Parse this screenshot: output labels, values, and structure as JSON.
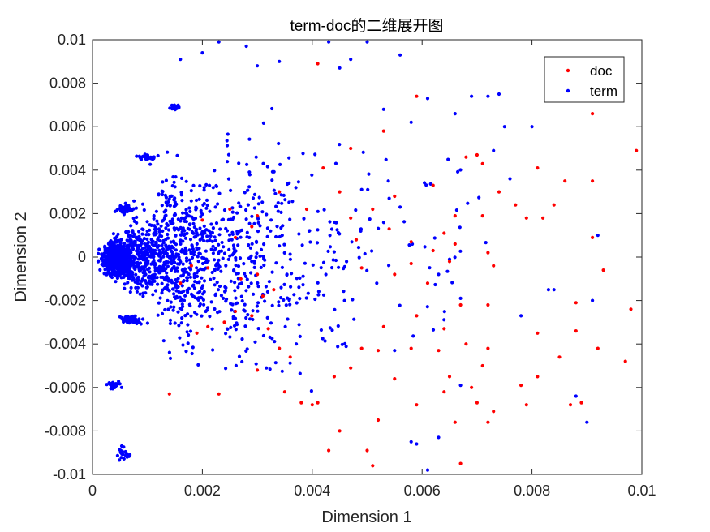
{
  "chart_data": {
    "type": "scatter",
    "title": "term-doc的二维展开图",
    "xlabel": "Dimension 1",
    "ylabel": "Dimension 2",
    "xlim": [
      0,
      0.01
    ],
    "ylim": [
      -0.01,
      0.01
    ],
    "x_ticks": [
      "0",
      "0.002",
      "0.004",
      "0.006",
      "0.008",
      "0.01"
    ],
    "y_ticks": [
      "-0.01",
      "-0.008",
      "-0.006",
      "-0.004",
      "-0.002",
      "0",
      "0.002",
      "0.004",
      "0.006",
      "0.008",
      "0.01"
    ],
    "grid": false,
    "legend_position": "top-right",
    "series": [
      {
        "name": "doc",
        "color": "#ff0000",
        "points": [
          [
            0.0041,
            0.0089
          ],
          [
            0.0059,
            0.0074
          ],
          [
            0.0091,
            0.0066
          ],
          [
            0.0099,
            0.0049
          ],
          [
            0.0053,
            0.0058
          ],
          [
            0.0047,
            0.005
          ],
          [
            0.0042,
            0.0041
          ],
          [
            0.0062,
            0.0033
          ],
          [
            0.0045,
            0.003
          ],
          [
            0.0055,
            0.0028
          ],
          [
            0.007,
            0.0047
          ],
          [
            0.0068,
            0.0046
          ],
          [
            0.0071,
            0.0043
          ],
          [
            0.0081,
            0.0041
          ],
          [
            0.0086,
            0.0035
          ],
          [
            0.0091,
            0.0035
          ],
          [
            0.0074,
            0.003
          ],
          [
            0.0077,
            0.0024
          ],
          [
            0.0084,
            0.0024
          ],
          [
            0.0066,
            0.0019
          ],
          [
            0.0071,
            0.0019
          ],
          [
            0.0079,
            0.0018
          ],
          [
            0.0082,
            0.0018
          ],
          [
            0.0091,
            0.0009
          ],
          [
            0.0093,
            -0.0006
          ],
          [
            0.0051,
            0.0022
          ],
          [
            0.0047,
            0.0018
          ],
          [
            0.0054,
            0.0013
          ],
          [
            0.0048,
            0.0008
          ],
          [
            0.0058,
            0.0007
          ],
          [
            0.0064,
            0.0011
          ],
          [
            0.0066,
            0.0006
          ],
          [
            0.0073,
            -0.0004
          ],
          [
            0.0062,
            0.0003
          ],
          [
            0.0072,
            0.0002
          ],
          [
            0.0058,
            -0.0003
          ],
          [
            0.0065,
            -0.0002
          ],
          [
            0.0049,
            -0.0005
          ],
          [
            0.0055,
            -0.0008
          ],
          [
            0.0061,
            -0.0012
          ],
          [
            0.0067,
            -0.0022
          ],
          [
            0.0072,
            -0.0022
          ],
          [
            0.0088,
            -0.0021
          ],
          [
            0.0098,
            -0.0024
          ],
          [
            0.0059,
            -0.0027
          ],
          [
            0.0053,
            -0.0032
          ],
          [
            0.0064,
            -0.0033
          ],
          [
            0.0068,
            -0.004
          ],
          [
            0.0081,
            -0.0035
          ],
          [
            0.0088,
            -0.0034
          ],
          [
            0.0092,
            -0.0042
          ],
          [
            0.0097,
            -0.0048
          ],
          [
            0.0085,
            -0.0046
          ],
          [
            0.0058,
            -0.0042
          ],
          [
            0.0063,
            -0.0043
          ],
          [
            0.0072,
            -0.0042
          ],
          [
            0.0049,
            -0.0042
          ],
          [
            0.0052,
            -0.0043
          ],
          [
            0.0047,
            -0.0051
          ],
          [
            0.0055,
            -0.0056
          ],
          [
            0.0065,
            -0.0055
          ],
          [
            0.0071,
            -0.005
          ],
          [
            0.0081,
            -0.0055
          ],
          [
            0.0078,
            -0.0059
          ],
          [
            0.0069,
            -0.006
          ],
          [
            0.0064,
            -0.0062
          ],
          [
            0.007,
            -0.0067
          ],
          [
            0.0073,
            -0.0071
          ],
          [
            0.0079,
            -0.0068
          ],
          [
            0.0087,
            -0.0068
          ],
          [
            0.0089,
            -0.0067
          ],
          [
            0.0066,
            -0.0076
          ],
          [
            0.0072,
            -0.0076
          ],
          [
            0.0059,
            -0.0068
          ],
          [
            0.0052,
            -0.0075
          ],
          [
            0.005,
            -0.0089
          ],
          [
            0.0051,
            -0.0096
          ],
          [
            0.0067,
            -0.0095
          ],
          [
            0.0045,
            -0.008
          ],
          [
            0.004,
            -0.0068
          ],
          [
            0.0041,
            -0.0067
          ],
          [
            0.0035,
            -0.0062
          ],
          [
            0.0038,
            -0.0067
          ],
          [
            0.003,
            -0.0052
          ],
          [
            0.0034,
            -0.0042
          ],
          [
            0.0032,
            -0.0033
          ],
          [
            0.0029,
            -0.0027
          ],
          [
            0.0024,
            -0.003
          ],
          [
            0.0026,
            -0.0025
          ],
          [
            0.0031,
            -0.0018
          ],
          [
            0.0027,
            -0.001
          ],
          [
            0.003,
            -0.0008
          ],
          [
            0.0033,
            -0.0015
          ],
          [
            0.0021,
            -0.0005
          ],
          [
            0.0018,
            -0.0004
          ],
          [
            0.0026,
            0.0009
          ],
          [
            0.0029,
            0.0014
          ],
          [
            0.003,
            0.0019
          ],
          [
            0.0025,
            0.0022
          ],
          [
            0.002,
            0.0017
          ],
          [
            0.0034,
            0.003
          ],
          [
            0.0039,
            0.0022
          ],
          [
            0.0023,
            -0.0063
          ],
          [
            0.0014,
            -0.0063
          ],
          [
            0.0019,
            -0.0035
          ],
          [
            0.0021,
            -0.0032
          ],
          [
            0.0016,
            -0.0012
          ],
          [
            0.0036,
            -0.0046
          ],
          [
            0.0044,
            -0.0055
          ],
          [
            0.0043,
            -0.0089
          ]
        ]
      },
      {
        "name": "term",
        "color": "#0000ff",
        "clusters": [
          {
            "cx": 0.00045,
            "cy": -0.0001,
            "rx": 0.00045,
            "ry": 0.0012,
            "n": 700
          },
          {
            "cx": 0.0009,
            "cy": 0.0,
            "rx": 0.0009,
            "ry": 0.003,
            "n": 350
          },
          {
            "cx": 0.0006,
            "cy": 0.0022,
            "rx": 0.00025,
            "ry": 0.0003,
            "n": 60
          },
          {
            "cx": 0.0007,
            "cy": -0.0029,
            "rx": 0.0003,
            "ry": 0.0003,
            "n": 60
          },
          {
            "cx": 0.001,
            "cy": 0.0046,
            "rx": 0.0003,
            "ry": 0.0002,
            "n": 40
          },
          {
            "cx": 0.0004,
            "cy": -0.0059,
            "rx": 0.0002,
            "ry": 0.0003,
            "n": 35
          },
          {
            "cx": 0.0015,
            "cy": 0.0069,
            "rx": 0.0002,
            "ry": 0.0002,
            "n": 25
          },
          {
            "cx": 0.0016,
            "cy": 0.0,
            "rx": 0.001,
            "ry": 0.006,
            "n": 420
          },
          {
            "cx": 0.0025,
            "cy": 0.0,
            "rx": 0.0012,
            "ry": 0.008,
            "n": 260
          },
          {
            "cx": 0.0034,
            "cy": 0.0,
            "rx": 0.0012,
            "ry": 0.009,
            "n": 130
          },
          {
            "cx": 0.0045,
            "cy": 0.0,
            "rx": 0.0012,
            "ry": 0.009,
            "n": 60
          },
          {
            "cx": 0.006,
            "cy": 0.001,
            "rx": 0.002,
            "ry": 0.008,
            "n": 35
          },
          {
            "cx": 0.0006,
            "cy": -0.009,
            "rx": 0.0003,
            "ry": 0.0006,
            "n": 20
          }
        ],
        "points": [
          [
            0.0023,
            0.0099
          ],
          [
            0.0028,
            0.0097
          ],
          [
            0.0043,
            0.0099
          ],
          [
            0.005,
            0.0099
          ],
          [
            0.0056,
            0.0093
          ],
          [
            0.0047,
            0.0091
          ],
          [
            0.0045,
            0.0087
          ],
          [
            0.0034,
            0.009
          ],
          [
            0.003,
            0.0088
          ],
          [
            0.002,
            0.0094
          ],
          [
            0.0016,
            0.0091
          ],
          [
            0.0072,
            0.0074
          ],
          [
            0.0074,
            0.0075
          ],
          [
            0.0069,
            0.0074
          ],
          [
            0.0061,
            0.0073
          ],
          [
            0.0066,
            0.0066
          ],
          [
            0.0075,
            0.006
          ],
          [
            0.008,
            0.006
          ],
          [
            0.0053,
            0.0068
          ],
          [
            0.0058,
            0.0062
          ],
          [
            0.0073,
            0.0049
          ],
          [
            0.0076,
            0.0036
          ],
          [
            0.0092,
            0.001
          ],
          [
            0.0083,
            -0.0015
          ],
          [
            0.0084,
            -0.0015
          ],
          [
            0.0067,
            -0.0019
          ],
          [
            0.0078,
            -0.0027
          ],
          [
            0.0091,
            -0.002
          ],
          [
            0.0063,
            -0.0008
          ],
          [
            0.0065,
            -0.0001
          ],
          [
            0.0056,
            0.0023
          ],
          [
            0.0054,
            0.0027
          ],
          [
            0.0055,
            -0.0043
          ],
          [
            0.0063,
            -0.0083
          ],
          [
            0.0061,
            -0.0098
          ],
          [
            0.0067,
            -0.0059
          ],
          [
            0.0088,
            -0.0064
          ],
          [
            0.009,
            -0.0076
          ],
          [
            0.0058,
            -0.0085
          ],
          [
            0.0059,
            -0.0086
          ]
        ]
      }
    ]
  }
}
